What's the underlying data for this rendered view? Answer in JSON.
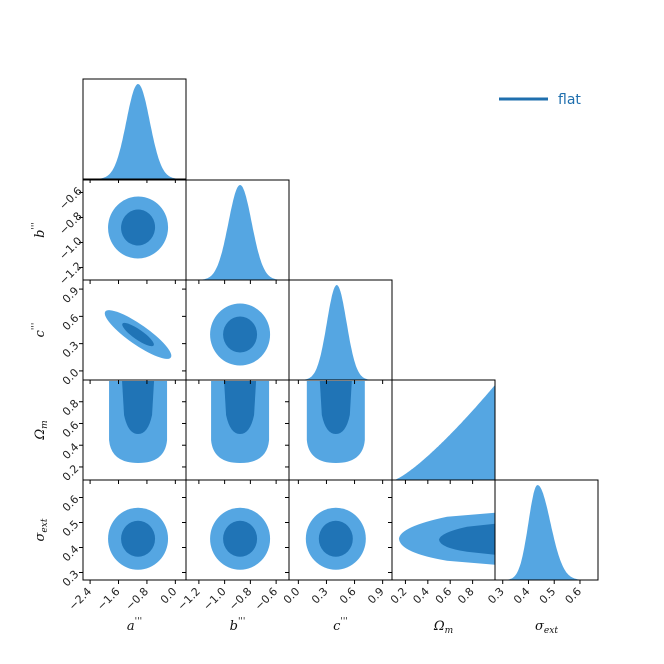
{
  "chart_data": {
    "type": "corner",
    "colors": {
      "outer": "#55a6e2",
      "inner": "#2074b6",
      "legend_line": "#1f6fae"
    },
    "legend": {
      "label": "flat",
      "placement": "top-right"
    },
    "parameters": [
      {
        "label": "a'''",
        "base": "a",
        "primes": "'''",
        "range": [
          -2.6,
          0.3
        ],
        "ticks": [
          -2.4,
          -1.6,
          -0.8,
          0.0
        ],
        "tick_labels": [
          "−2.4",
          "−1.6",
          "−0.8",
          "0.0"
        ],
        "mean": -1.05,
        "sd": 0.33
      },
      {
        "label": "b'''",
        "base": "b",
        "primes": "'''",
        "range": [
          -1.3,
          -0.5
        ],
        "ticks": [
          -1.2,
          -1.0,
          -0.8,
          -0.6
        ],
        "tick_labels": [
          "−1.2",
          "−1.0",
          "−0.8",
          "−0.6"
        ],
        "mean": -0.88,
        "sd": 0.09
      },
      {
        "label": "c'''",
        "base": "c",
        "primes": "'''",
        "range": [
          -0.1,
          1.0
        ],
        "ticks": [
          0.0,
          0.3,
          0.6,
          0.9
        ],
        "tick_labels": [
          "0.0",
          "0.3",
          "0.6",
          "0.9"
        ],
        "mean": 0.4,
        "sd": 0.1
      },
      {
        "label": "Ωm",
        "base": "Ω",
        "sub": "m",
        "range": [
          0.08,
          1.0
        ],
        "ticks": [
          0.2,
          0.4,
          0.6,
          0.8
        ],
        "tick_labels": [
          "0.2",
          "0.4",
          "0.6",
          "0.8"
        ],
        "mean": 0.6,
        "sd": 0.2
      },
      {
        "label": "σext",
        "base": "σ",
        "sub": "ext",
        "range": [
          0.27,
          0.67
        ],
        "ticks": [
          0.3,
          0.4,
          0.5,
          0.6
        ],
        "tick_labels": [
          "0.3",
          "0.4",
          "0.5",
          "0.6"
        ],
        "mean": 0.435,
        "sd": 0.04
      }
    ],
    "diagonal": [
      {
        "param": 0,
        "shape": "gaussian",
        "mean": -1.05,
        "sd": 0.33
      },
      {
        "param": 1,
        "shape": "gaussian",
        "mean": -0.88,
        "sd": 0.09
      },
      {
        "param": 2,
        "shape": "gaussian",
        "mean": 0.41,
        "sd": 0.105
      },
      {
        "param": 3,
        "shape": "ramp",
        "start": 0.1,
        "end": 1.0
      },
      {
        "param": 4,
        "shape": "skewed",
        "mean": 0.435,
        "sd_left": 0.035,
        "sd_right": 0.05
      }
    ],
    "off_diagonal": [
      {
        "row": 1,
        "col": 0,
        "shape": "ellipse",
        "cx": -1.05,
        "cy": -0.88,
        "corr": 0.12
      },
      {
        "row": 2,
        "col": 0,
        "shape": "ellipse",
        "cx": -1.05,
        "cy": 0.4,
        "corr": -0.93
      },
      {
        "row": 2,
        "col": 1,
        "shape": "ellipse",
        "cx": -0.88,
        "cy": 0.4,
        "corr": 0.0
      },
      {
        "row": 3,
        "col": 0,
        "shape": "u",
        "cx": -1.05
      },
      {
        "row": 3,
        "col": 1,
        "shape": "u",
        "cx": -0.88
      },
      {
        "row": 3,
        "col": 2,
        "shape": "u",
        "cx": 0.4
      },
      {
        "row": 4,
        "col": 0,
        "shape": "ellipse",
        "cx": -1.05,
        "cy": 0.435,
        "corr": 0.0
      },
      {
        "row": 4,
        "col": 1,
        "shape": "ellipse",
        "cx": -0.88,
        "cy": 0.435,
        "corr": 0.0
      },
      {
        "row": 4,
        "col": 2,
        "shape": "ellipse",
        "cx": 0.4,
        "cy": 0.435,
        "corr": 0.0
      },
      {
        "row": 4,
        "col": 3,
        "shape": "wedge",
        "cy": 0.435
      }
    ]
  }
}
